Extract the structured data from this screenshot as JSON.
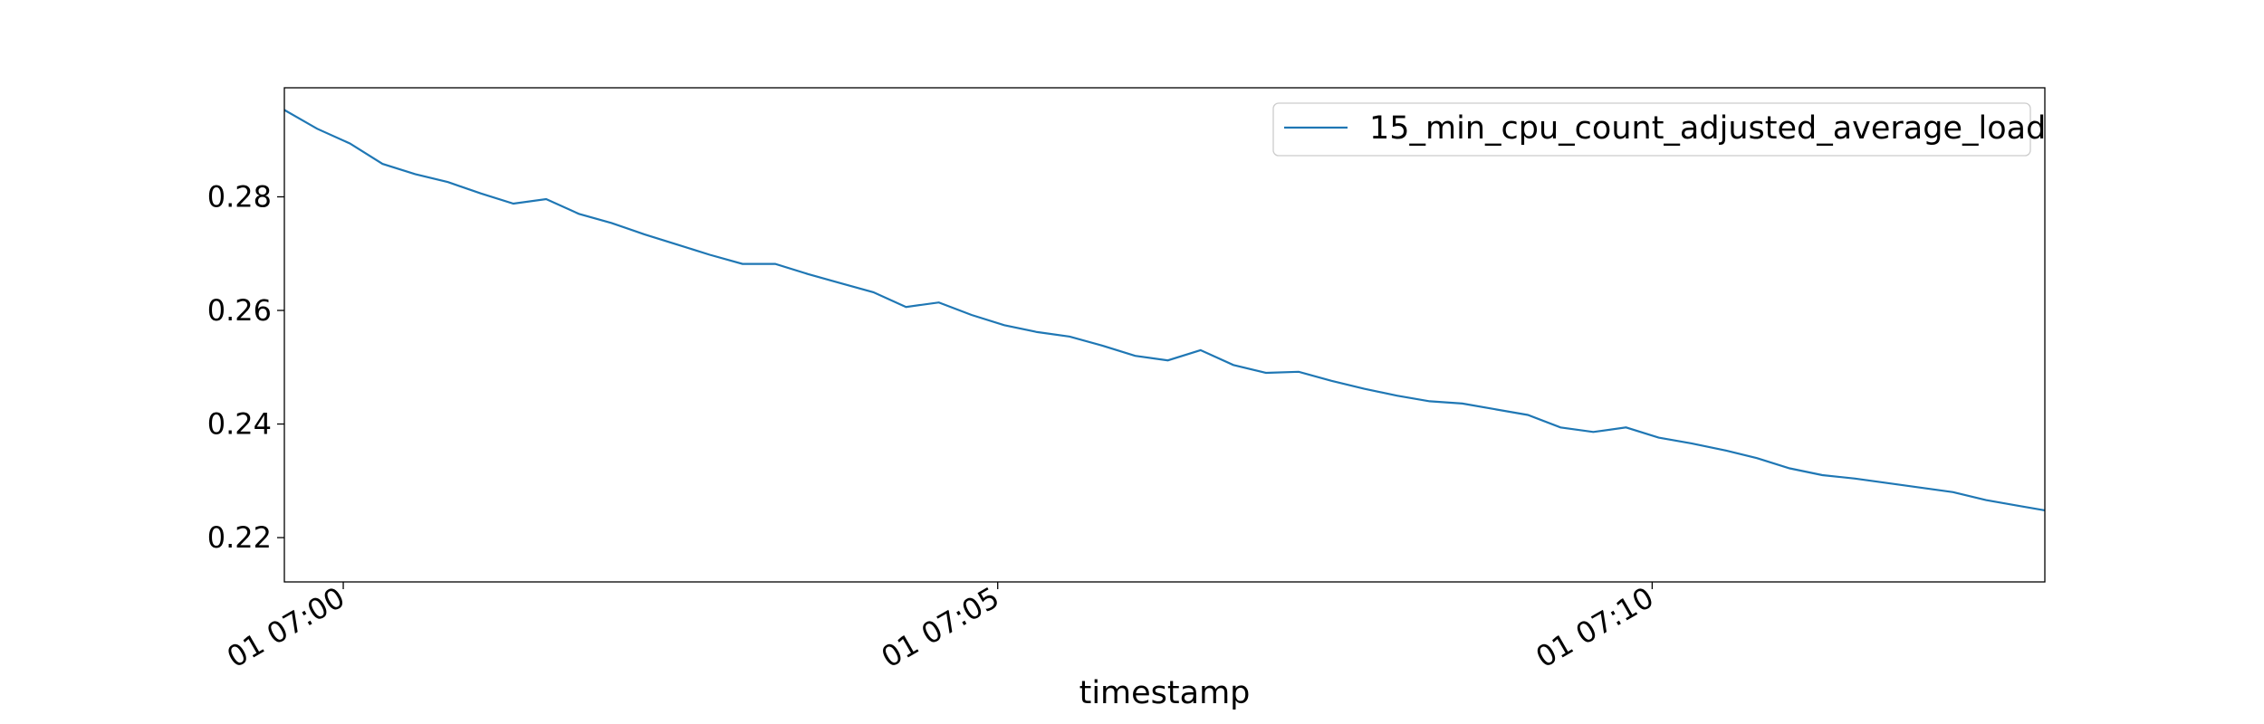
{
  "chart_data": {
    "type": "line",
    "title": "",
    "xlabel": "timestamp",
    "ylabel": "",
    "grid": false,
    "legend_placement": "top-right",
    "x_ticks": [
      "01 07:00",
      "01 07:05",
      "01 07:10"
    ],
    "y_ticks": [
      "0.22",
      "0.24",
      "0.26",
      "0.28"
    ],
    "xlim": [
      "2000-01-01 06:59:33",
      "2000-01-01 07:13:00"
    ],
    "ylim": [
      0.2122,
      0.2992
    ],
    "series": [
      {
        "name": "15_min_cpu_count_adjusted_average_load",
        "color": "#1f77b4",
        "x": [
          "06:59:33",
          "06:59:48",
          "07:00:03",
          "07:00:18",
          "07:00:33",
          "07:00:48",
          "07:01:03",
          "07:01:18",
          "07:01:33",
          "07:01:48",
          "07:02:03",
          "07:02:18",
          "07:02:33",
          "07:02:48",
          "07:03:03",
          "07:03:18",
          "07:03:33",
          "07:03:48",
          "07:04:03",
          "07:04:18",
          "07:04:33",
          "07:04:48",
          "07:05:03",
          "07:05:18",
          "07:05:33",
          "07:05:48",
          "07:06:03",
          "07:06:18",
          "07:06:33",
          "07:06:48",
          "07:07:03",
          "07:07:18",
          "07:07:33",
          "07:07:48",
          "07:08:03",
          "07:08:18",
          "07:08:33",
          "07:08:48",
          "07:09:03",
          "07:09:18",
          "07:09:33",
          "07:09:48",
          "07:10:03",
          "07:10:18",
          "07:10:33",
          "07:10:48",
          "07:11:03",
          "07:11:18",
          "07:11:33",
          "07:11:48",
          "07:12:03",
          "07:12:18",
          "07:12:33",
          "07:12:48",
          "07:13:00"
        ],
        "values": [
          0.2953,
          0.292,
          0.2894,
          0.2858,
          0.284,
          0.2826,
          0.2806,
          0.2788,
          0.2796,
          0.277,
          0.2754,
          0.2734,
          0.2716,
          0.2698,
          0.2682,
          0.2682,
          0.2664,
          0.2648,
          0.2632,
          0.2606,
          0.2614,
          0.2592,
          0.2574,
          0.2562,
          0.2554,
          0.2538,
          0.252,
          0.2512,
          0.253,
          0.2504,
          0.249,
          0.2492,
          0.2476,
          0.2462,
          0.245,
          0.244,
          0.2436,
          0.2426,
          0.2416,
          0.2394,
          0.2386,
          0.2394,
          0.2376,
          0.2366,
          0.2354,
          0.234,
          0.2322,
          0.231,
          0.2304,
          0.2296,
          0.2288,
          0.228,
          0.2266,
          0.2256,
          0.2248
        ]
      }
    ]
  }
}
